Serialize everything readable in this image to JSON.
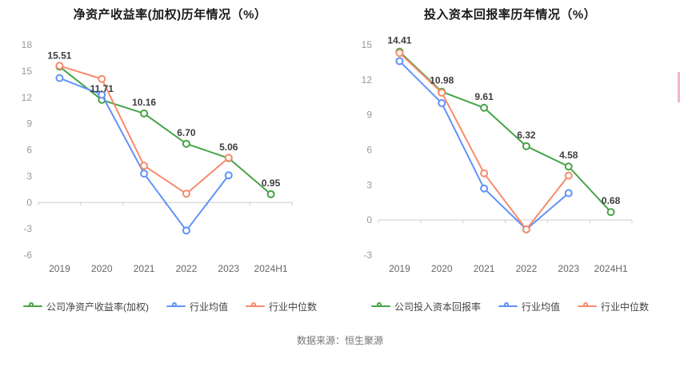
{
  "page": {
    "source_note": "数据来源：恒生聚源"
  },
  "chart_data": [
    {
      "type": "line",
      "title": "净资产收益率(加权)历年情况（%）",
      "categories": [
        "2019",
        "2020",
        "2021",
        "2022",
        "2023",
        "2024H1"
      ],
      "ylim": [
        -6,
        18
      ],
      "yticks": [
        18,
        15,
        12,
        9,
        6,
        3,
        0,
        -3,
        -6
      ],
      "grid": false,
      "legend_position": "bottom",
      "series": [
        {
          "name": "公司净资产收益率(加权)",
          "color": "#47a447",
          "values": [
            15.51,
            11.71,
            10.16,
            6.7,
            5.06,
            0.95
          ],
          "data_labels": [
            "15.51",
            "11.71",
            "10.16",
            "6.70",
            "5.06",
            "0.95"
          ]
        },
        {
          "name": "行业均值",
          "color": "#6292f9",
          "values": [
            14.2,
            12.3,
            3.3,
            -3.2,
            3.1,
            null
          ]
        },
        {
          "name": "行业中位数",
          "color": "#f78b6d",
          "values": [
            15.6,
            14.1,
            4.2,
            1.0,
            5.1,
            null
          ]
        }
      ]
    },
    {
      "type": "line",
      "title": "投入资本回报率历年情况（%）",
      "categories": [
        "2019",
        "2020",
        "2021",
        "2022",
        "2023",
        "2024H1"
      ],
      "ylim": [
        -3,
        15
      ],
      "yticks": [
        15,
        12,
        9,
        6,
        3,
        0,
        -3
      ],
      "grid": false,
      "legend_position": "bottom",
      "series": [
        {
          "name": "公司投入资本回报率",
          "color": "#47a447",
          "values": [
            14.41,
            10.98,
            9.61,
            6.32,
            4.58,
            0.68
          ],
          "data_labels": [
            "14.41",
            "10.98",
            "9.61",
            "6.32",
            "4.58",
            "0.68"
          ]
        },
        {
          "name": "行业均值",
          "color": "#6292f9",
          "values": [
            13.6,
            10.0,
            2.7,
            -0.8,
            2.3,
            null
          ]
        },
        {
          "name": "行业中位数",
          "color": "#f78b6d",
          "values": [
            14.3,
            10.9,
            4.0,
            -0.8,
            3.8,
            null
          ]
        }
      ]
    }
  ]
}
